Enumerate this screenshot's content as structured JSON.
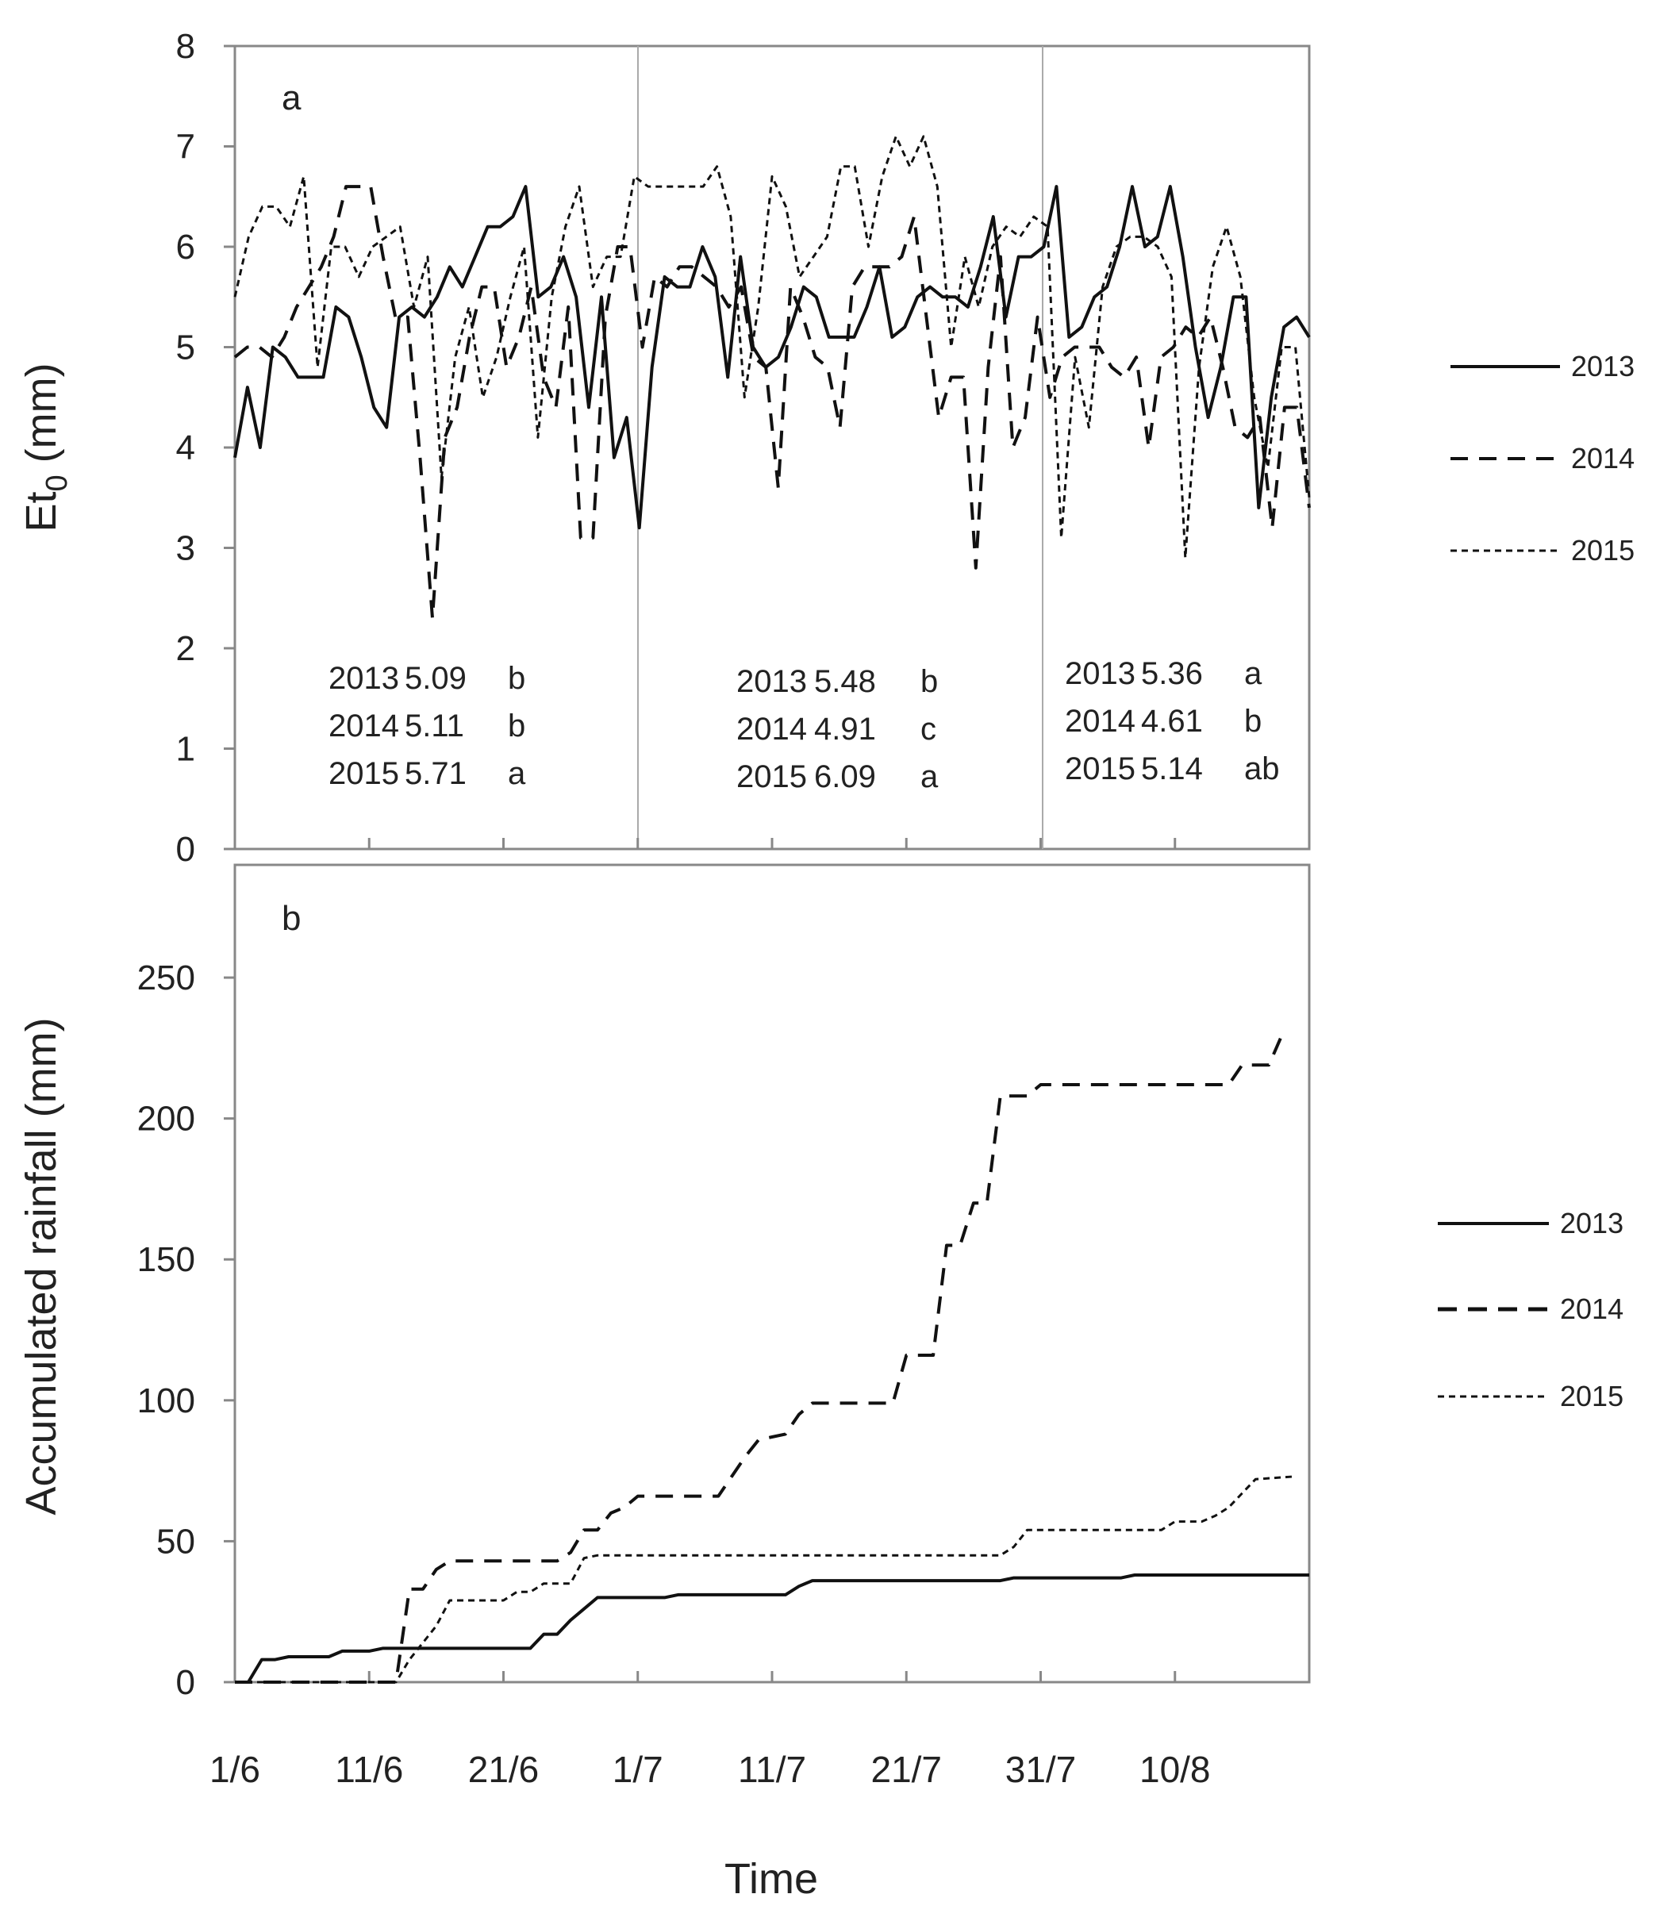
{
  "chart_data": [
    {
      "type": "line",
      "panel_label": "a",
      "ylabel": "Et",
      "ylabel_sub": "0",
      "ylabel_unit": " (mm)",
      "ylim": [
        0,
        8
      ],
      "yticks": [
        "0",
        "1",
        "2",
        "3",
        "4",
        "5",
        "6",
        "7",
        "8"
      ],
      "x_days_total": 80,
      "period_dividers_day": [
        30,
        60
      ],
      "legend": [
        "2013",
        "2014",
        "2015"
      ],
      "series": [
        {
          "name": "2013",
          "dash": "solid",
          "values": [
            3.9,
            4.6,
            4.0,
            5.0,
            4.9,
            4.7,
            4.7,
            4.7,
            5.4,
            5.3,
            4.9,
            4.4,
            4.2,
            5.3,
            5.4,
            5.3,
            5.5,
            5.8,
            5.6,
            5.9,
            6.2,
            6.2,
            6.3,
            6.6,
            5.5,
            5.6,
            5.9,
            5.5,
            4.4,
            5.5,
            3.9,
            4.3,
            3.2,
            4.8,
            5.7,
            5.6,
            5.6,
            6.0,
            5.7,
            4.7,
            5.9,
            5.0,
            4.8,
            4.9,
            5.2,
            5.6,
            5.5,
            5.1,
            5.1,
            5.1,
            5.4,
            5.8,
            5.1,
            5.2,
            5.5,
            5.6,
            5.5,
            5.5,
            5.4,
            5.8,
            6.3,
            5.3,
            5.9,
            5.9,
            6.0,
            6.6,
            5.1,
            5.2,
            5.5,
            5.6,
            6.0,
            6.6,
            6.0,
            6.1,
            6.6,
            5.9,
            5.0,
            4.3,
            4.8,
            5.5,
            5.5,
            3.4,
            4.5,
            5.2,
            5.3,
            5.1
          ]
        },
        {
          "name": "2014",
          "dash": "dashed",
          "values": [
            4.9,
            5.0,
            5.0,
            4.9,
            5.1,
            5.4,
            5.6,
            5.8,
            6.1,
            6.6,
            6.6,
            6.6,
            5.9,
            5.3,
            5.3,
            3.9,
            2.3,
            4.1,
            4.4,
            5.1,
            5.6,
            5.6,
            4.8,
            5.1,
            5.6,
            4.7,
            4.4,
            5.4,
            3.1,
            3.1,
            5.3,
            6.0,
            6.0,
            5.0,
            5.7,
            5.6,
            5.8,
            5.8,
            5.7,
            5.6,
            5.4,
            5.6,
            4.9,
            4.8,
            3.6,
            5.6,
            5.3,
            4.9,
            4.8,
            4.2,
            5.6,
            5.8,
            5.8,
            5.8,
            5.9,
            6.3,
            5.3,
            4.3,
            4.7,
            4.7,
            2.8,
            4.8,
            5.9,
            4.0,
            4.3,
            5.3,
            4.5,
            4.9,
            5.0,
            5.0,
            5.0,
            4.8,
            4.7,
            4.9,
            4.0,
            4.9,
            5.0,
            5.2,
            5.1,
            5.3,
            4.8,
            4.2,
            4.1,
            4.3,
            3.2,
            4.4,
            4.4,
            3.4
          ]
        },
        {
          "name": "2015",
          "dash": "dotted",
          "values": [
            5.5,
            6.1,
            6.4,
            6.4,
            6.2,
            6.7,
            4.8,
            6.0,
            6.0,
            5.7,
            6.0,
            6.1,
            6.2,
            5.4,
            5.9,
            3.7,
            4.9,
            5.4,
            4.5,
            4.9,
            5.5,
            6.0,
            4.1,
            5.5,
            6.2,
            6.6,
            5.6,
            5.9,
            5.9,
            6.7,
            6.6,
            6.6,
            6.6,
            6.6,
            6.6,
            6.8,
            6.3,
            4.5,
            5.4,
            6.7,
            6.4,
            5.7,
            5.9,
            6.1,
            6.8,
            6.8,
            6.0,
            6.7,
            7.1,
            6.8,
            7.1,
            6.6,
            5.0,
            5.9,
            5.4,
            6.0,
            6.2,
            6.1,
            6.3,
            6.2,
            3.1,
            4.9,
            4.2,
            5.6,
            6.0,
            6.1,
            6.1,
            6.0,
            5.7,
            2.9,
            4.8,
            5.8,
            6.2,
            5.7,
            4.5,
            3.8,
            5.0,
            5.0,
            3.5
          ]
        }
      ],
      "annotations": [
        {
          "rows": [
            [
              "2013",
              "5.09",
              "b"
            ],
            [
              "2014",
              "5.11",
              "b"
            ],
            [
              "2015",
              "5.71",
              "a"
            ]
          ]
        },
        {
          "rows": [
            [
              "2013",
              "5.48",
              "b"
            ],
            [
              "2014",
              "4.91",
              "c"
            ],
            [
              "2015",
              "6.09",
              "a"
            ]
          ]
        },
        {
          "rows": [
            [
              "2013",
              "5.36",
              "a"
            ],
            [
              "2014",
              "4.61",
              "b"
            ],
            [
              "2015",
              "5.14",
              "ab"
            ]
          ]
        }
      ]
    },
    {
      "type": "line",
      "panel_label": "b",
      "ylabel": "Accumulated rainfall (mm)",
      "ylim": [
        0,
        290
      ],
      "yticks": [
        "0",
        "50",
        "100",
        "150",
        "200",
        "250"
      ],
      "xlabel": "Time",
      "x_days_total": 80,
      "xticks": [
        "1/6",
        "11/6",
        "21/6",
        "1/7",
        "11/7",
        "21/7",
        "31/7",
        "10/8"
      ],
      "legend": [
        "2013",
        "2014",
        "2015"
      ],
      "series": [
        {
          "name": "2013",
          "dash": "solid",
          "points": [
            [
              0,
              0
            ],
            [
              1,
              0
            ],
            [
              2,
              8
            ],
            [
              3,
              8
            ],
            [
              4,
              9
            ],
            [
              7,
              9
            ],
            [
              8,
              11
            ],
            [
              10,
              11
            ],
            [
              11,
              12
            ],
            [
              22,
              12
            ],
            [
              23,
              17
            ],
            [
              24,
              17
            ],
            [
              25,
              22
            ],
            [
              26,
              26
            ],
            [
              27,
              30
            ],
            [
              32,
              30
            ],
            [
              33,
              31
            ],
            [
              41,
              31
            ],
            [
              42,
              34
            ],
            [
              43,
              36
            ],
            [
              57,
              36
            ],
            [
              58,
              37
            ],
            [
              66,
              37
            ],
            [
              67,
              38
            ],
            [
              80,
              38
            ]
          ]
        },
        {
          "name": "2014",
          "dash": "dashed",
          "points": [
            [
              0,
              0
            ],
            [
              12,
              0
            ],
            [
              13,
              33
            ],
            [
              14,
              33
            ],
            [
              15,
              40
            ],
            [
              16,
              43
            ],
            [
              24,
              43
            ],
            [
              25,
              46
            ],
            [
              26,
              54
            ],
            [
              27,
              54
            ],
            [
              28,
              60
            ],
            [
              29,
              62
            ],
            [
              30,
              66
            ],
            [
              36,
              66
            ],
            [
              37,
              73
            ],
            [
              38,
              80
            ],
            [
              39,
              86
            ],
            [
              40,
              87
            ],
            [
              41,
              88
            ],
            [
              42,
              95
            ],
            [
              43,
              99
            ],
            [
              49,
              99
            ],
            [
              50,
              116
            ],
            [
              52,
              116
            ],
            [
              53,
              155
            ],
            [
              54,
              155
            ],
            [
              55,
              170
            ],
            [
              56,
              170
            ],
            [
              57,
              208
            ],
            [
              59,
              208
            ],
            [
              60,
              212
            ],
            [
              74,
              212
            ],
            [
              75,
              219
            ],
            [
              77,
              219
            ],
            [
              78,
              230
            ]
          ]
        },
        {
          "name": "2015",
          "dash": "dotted",
          "points": [
            [
              0,
              0
            ],
            [
              12,
              0
            ],
            [
              13,
              8
            ],
            [
              14,
              14
            ],
            [
              15,
              20
            ],
            [
              16,
              29
            ],
            [
              20,
              29
            ],
            [
              21,
              32
            ],
            [
              22,
              32
            ],
            [
              23,
              35
            ],
            [
              25,
              35
            ],
            [
              26,
              44
            ],
            [
              27,
              45
            ],
            [
              57,
              45
            ],
            [
              58,
              48
            ],
            [
              59,
              54
            ],
            [
              63,
              54
            ],
            [
              64,
              54
            ],
            [
              69,
              54
            ],
            [
              70,
              57
            ],
            [
              72,
              57
            ],
            [
              73,
              59
            ],
            [
              74,
              62
            ],
            [
              75,
              67
            ],
            [
              76,
              72
            ],
            [
              79,
              73
            ]
          ]
        }
      ]
    }
  ]
}
